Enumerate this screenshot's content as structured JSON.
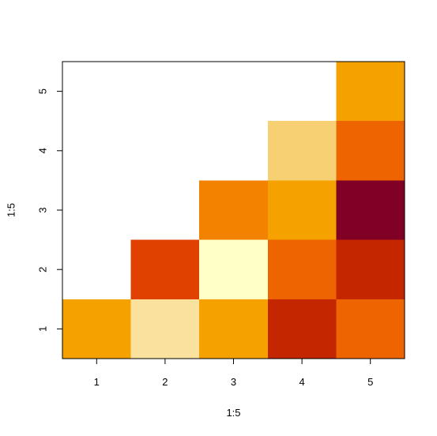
{
  "chart_data": {
    "type": "heatmap",
    "title": "",
    "xlabel": "1:5",
    "ylabel": "1:5",
    "x": [
      1,
      2,
      3,
      4,
      5
    ],
    "y": [
      1,
      2,
      3,
      4,
      5
    ],
    "xlim": [
      0.5,
      5.5
    ],
    "ylim": [
      0.5,
      5.5
    ],
    "x_tick_labels": [
      "1",
      "2",
      "3",
      "4",
      "5"
    ],
    "y_tick_labels": [
      "1",
      "2",
      "3",
      "4",
      "5"
    ],
    "grid": false,
    "legend": "none",
    "cells": [
      {
        "x": 1,
        "y": 1,
        "color": "#F5A100"
      },
      {
        "x": 2,
        "y": 1,
        "color": "#FAE29E"
      },
      {
        "x": 3,
        "y": 1,
        "color": "#F5A100"
      },
      {
        "x": 4,
        "y": 1,
        "color": "#C42600"
      },
      {
        "x": 5,
        "y": 1,
        "color": "#ED6400"
      },
      {
        "x": 2,
        "y": 2,
        "color": "#E04000"
      },
      {
        "x": 3,
        "y": 2,
        "color": "#FFFFC8"
      },
      {
        "x": 4,
        "y": 2,
        "color": "#ED6400"
      },
      {
        "x": 5,
        "y": 2,
        "color": "#C42600"
      },
      {
        "x": 3,
        "y": 3,
        "color": "#F28200"
      },
      {
        "x": 4,
        "y": 3,
        "color": "#F5A100"
      },
      {
        "x": 5,
        "y": 3,
        "color": "#800026"
      },
      {
        "x": 4,
        "y": 4,
        "color": "#F7D074"
      },
      {
        "x": 5,
        "y": 4,
        "color": "#ED6400"
      },
      {
        "x": 5,
        "y": 5,
        "color": "#F5A100"
      }
    ]
  }
}
